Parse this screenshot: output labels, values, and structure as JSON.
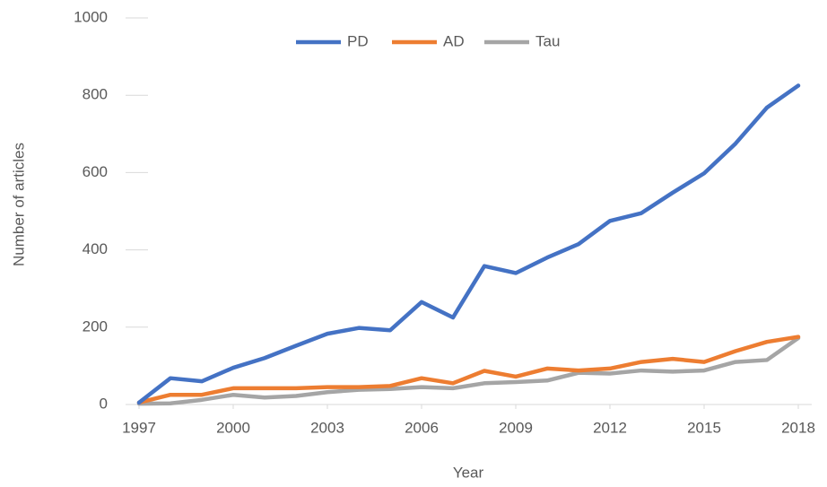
{
  "chart_data": {
    "type": "line",
    "x": [
      1997,
      1998,
      1999,
      2000,
      2001,
      2002,
      2003,
      2004,
      2005,
      2006,
      2007,
      2008,
      2009,
      2010,
      2011,
      2012,
      2013,
      2014,
      2015,
      2016,
      2017,
      2018
    ],
    "series": [
      {
        "name": "PD",
        "color": "#4472c4",
        "values": [
          5,
          68,
          60,
          95,
          120,
          152,
          183,
          198,
          192,
          265,
          225,
          358,
          340,
          380,
          415,
          475,
          495,
          548,
          598,
          675,
          768,
          825
        ]
      },
      {
        "name": "AD",
        "color": "#ed7d31",
        "values": [
          5,
          25,
          25,
          42,
          42,
          42,
          45,
          45,
          48,
          68,
          55,
          87,
          72,
          93,
          88,
          93,
          110,
          118,
          110,
          138,
          162,
          175
        ]
      },
      {
        "name": "Tau",
        "color": "#a5a5a5",
        "values": [
          2,
          3,
          12,
          25,
          18,
          22,
          32,
          38,
          40,
          45,
          42,
          55,
          58,
          62,
          82,
          80,
          88,
          85,
          88,
          110,
          115,
          172
        ]
      }
    ],
    "xlim": [
      1997,
      2018
    ],
    "xticks": [
      1997,
      2000,
      2003,
      2006,
      2009,
      2012,
      2015,
      2018
    ],
    "ylim": [
      0,
      1000
    ],
    "yticks": [
      0,
      200,
      400,
      600,
      800,
      1000
    ],
    "xlabel": "Year",
    "ylabel": "Number of articles",
    "legend": "top"
  }
}
